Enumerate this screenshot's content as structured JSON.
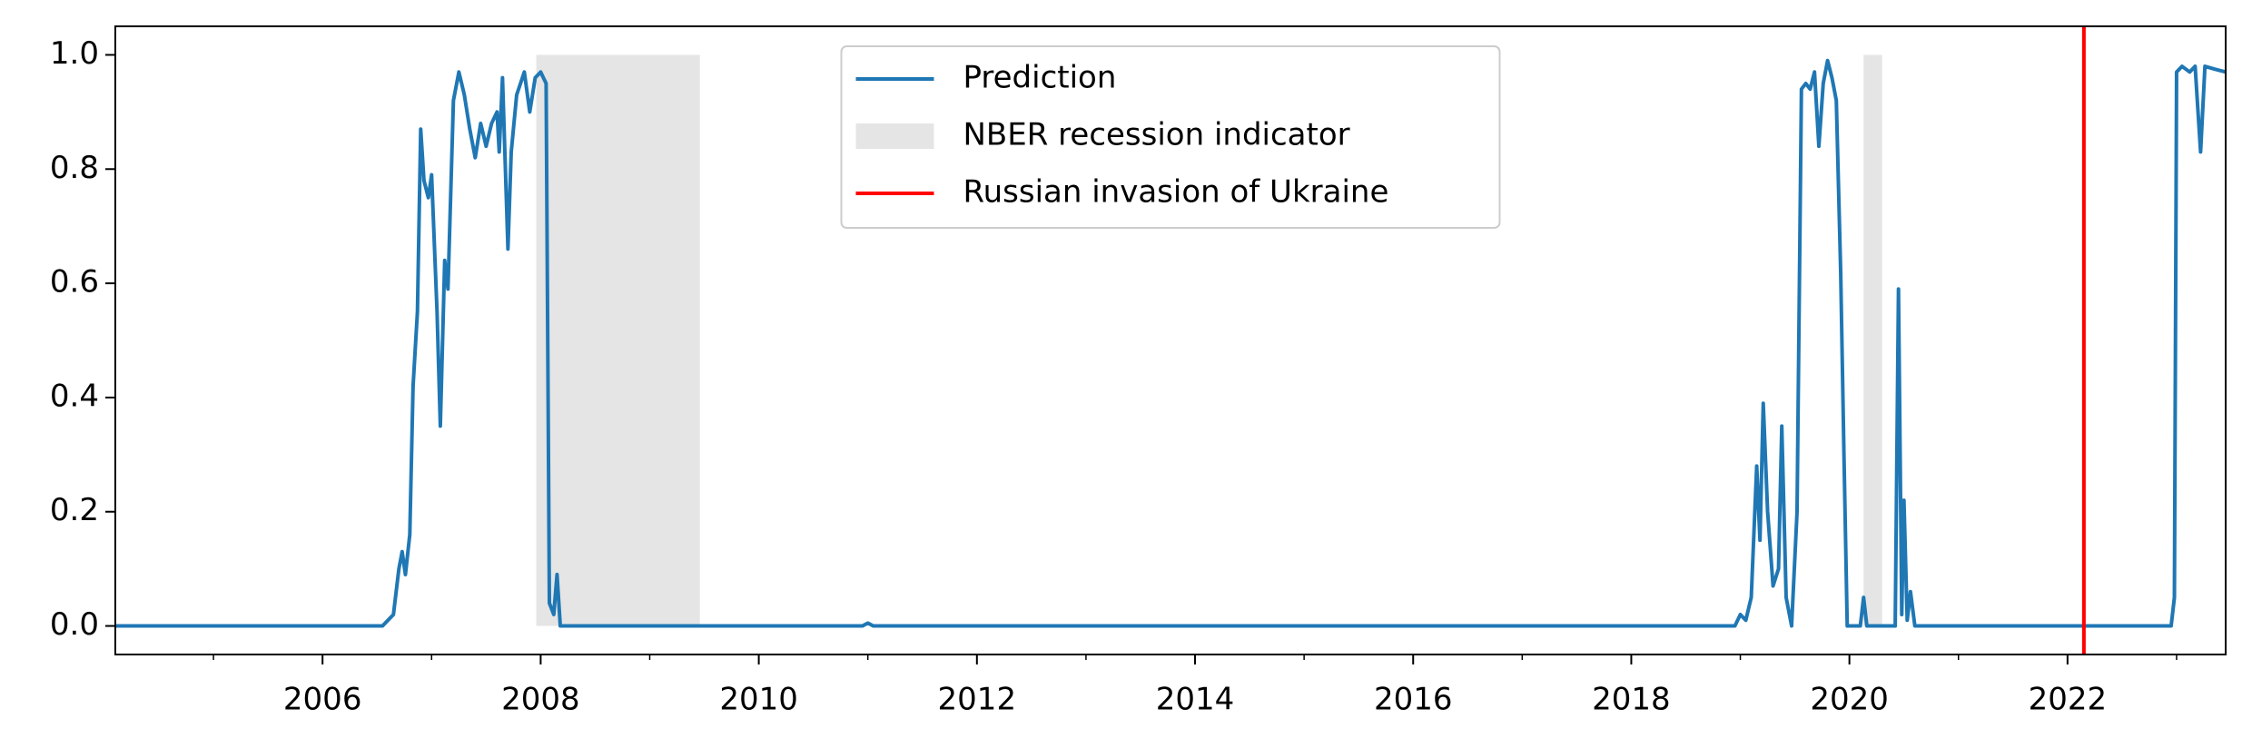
{
  "chart_data": {
    "type": "line",
    "xlim": [
      2004.1,
      2023.45
    ],
    "ylim": [
      -0.05,
      1.05
    ],
    "xticks": [
      2006,
      2008,
      2010,
      2012,
      2014,
      2016,
      2018,
      2020,
      2022
    ],
    "xminorticks": [
      2005,
      2007,
      2009,
      2011,
      2013,
      2015,
      2017,
      2019,
      2021,
      2023
    ],
    "yticks": [
      {
        "value": 0,
        "label": "0.0"
      },
      0.2,
      0.4,
      0.6,
      0.8,
      {
        "value": 1,
        "label": "1.0"
      }
    ],
    "legend": "upper center",
    "series": [
      {
        "name": "Prediction",
        "color": "#1f77b4",
        "x": [
          2004.1,
          2006.55,
          2006.65,
          2006.7,
          2006.73,
          2006.76,
          2006.8,
          2006.83,
          2006.87,
          2006.9,
          2006.93,
          2006.97,
          2007.0,
          2007.05,
          2007.08,
          2007.12,
          2007.15,
          2007.2,
          2007.25,
          2007.3,
          2007.35,
          2007.4,
          2007.45,
          2007.5,
          2007.55,
          2007.6,
          2007.62,
          2007.65,
          2007.7,
          2007.73,
          2007.78,
          2007.85,
          2007.9,
          2007.95,
          2008.0,
          2008.05,
          2008.08,
          2008.12,
          2008.15,
          2008.18,
          2010.95,
          2011.0,
          2011.05,
          2018.95,
          2019.0,
          2019.05,
          2019.1,
          2019.15,
          2019.18,
          2019.21,
          2019.25,
          2019.3,
          2019.35,
          2019.38,
          2019.42,
          2019.47,
          2019.52,
          2019.56,
          2019.6,
          2019.64,
          2019.68,
          2019.72,
          2019.76,
          2019.8,
          2019.84,
          2019.88,
          2019.92,
          2019.95,
          2019.98,
          2020.1,
          2020.13,
          2020.16,
          2020.42,
          2020.45,
          2020.48,
          2020.5,
          2020.53,
          2020.56,
          2020.6,
          2022.95,
          2022.98,
          2023.0,
          2023.05,
          2023.12,
          2023.17,
          2023.22,
          2023.26,
          2023.35,
          2023.45
        ],
        "values": [
          0,
          0,
          0.02,
          0.1,
          0.13,
          0.09,
          0.16,
          0.42,
          0.55,
          0.87,
          0.78,
          0.75,
          0.79,
          0.55,
          0.35,
          0.64,
          0.59,
          0.92,
          0.97,
          0.93,
          0.87,
          0.82,
          0.88,
          0.84,
          0.88,
          0.9,
          0.83,
          0.96,
          0.66,
          0.83,
          0.93,
          0.97,
          0.9,
          0.96,
          0.97,
          0.95,
          0.04,
          0.02,
          0.09,
          0,
          0,
          0.005,
          0,
          0,
          0.02,
          0.01,
          0.05,
          0.28,
          0.15,
          0.39,
          0.2,
          0.07,
          0.1,
          0.35,
          0.05,
          0,
          0.2,
          0.94,
          0.95,
          0.94,
          0.97,
          0.84,
          0.95,
          0.99,
          0.96,
          0.92,
          0.62,
          0.3,
          0,
          0,
          0.05,
          0,
          0,
          0.59,
          0.02,
          0.22,
          0.01,
          0.06,
          0,
          0,
          0.05,
          0.97,
          0.98,
          0.97,
          0.98,
          0.83,
          0.98,
          0.975,
          0.97
        ]
      }
    ],
    "shaded": {
      "name": "NBER recession indicator",
      "color": "#e5e5e5",
      "spans": [
        {
          "start": 2007.96,
          "end": 2009.46,
          "low": 0,
          "high": 1
        },
        {
          "start": 2020.13,
          "end": 2020.3,
          "low": 0,
          "high": 1
        }
      ]
    },
    "vline": {
      "name": "Russian invasion of Ukraine",
      "color": "#ff0000",
      "x": 2022.15
    }
  }
}
